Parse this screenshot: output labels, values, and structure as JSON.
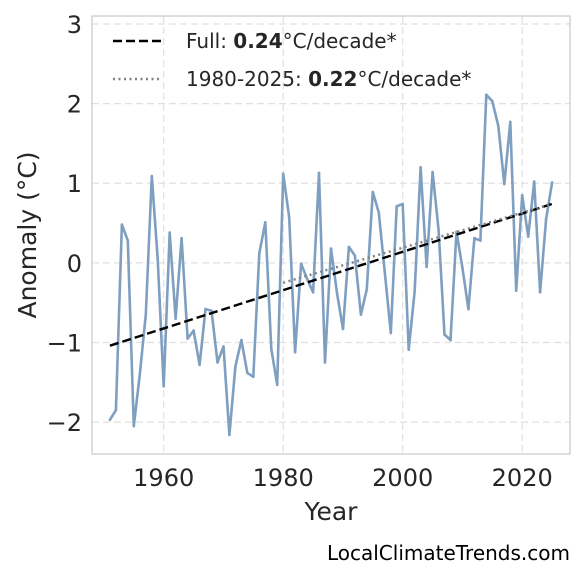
{
  "chart_data": {
    "type": "line",
    "xlabel": "Year",
    "ylabel": "Anomaly (°C)",
    "xlim": [
      1948,
      2028
    ],
    "ylim": [
      -2.4,
      3.1
    ],
    "x_ticks": [
      1960,
      1980,
      2000,
      2020
    ],
    "y_ticks": [
      -2,
      -1,
      0,
      1,
      2,
      3
    ],
    "y_tick_labels": [
      "−2",
      "−1",
      "0",
      "1",
      "2",
      "3"
    ],
    "grid": true,
    "legend_position": "top-left",
    "colors": {
      "series": "#7f9fc1",
      "full_trend": "#000000",
      "recent_trend": "#808080"
    },
    "series": [
      {
        "x": [
          1951,
          1952,
          1953,
          1954,
          1955,
          1956,
          1957,
          1958,
          1959,
          1960,
          1961,
          1962,
          1963,
          1964,
          1965,
          1966,
          1967,
          1968,
          1969,
          1970,
          1971,
          1972,
          1973,
          1974,
          1975,
          1976,
          1977,
          1978,
          1979,
          1980,
          1981,
          1982,
          1983,
          1984,
          1985,
          1986,
          1987,
          1988,
          1989,
          1990,
          1991,
          1992,
          1993,
          1994,
          1995,
          1996,
          1997,
          1998,
          1999,
          2000,
          2001,
          2002,
          2003,
          2004,
          2005,
          2006,
          2007,
          2008,
          2009,
          2010,
          2011,
          2012,
          2013,
          2014,
          2015,
          2016,
          2017,
          2018,
          2019,
          2020,
          2021,
          2022,
          2023,
          2024,
          2025
        ],
        "y": [
          -1.97,
          -1.85,
          0.48,
          0.28,
          -2.05,
          -1.4,
          -0.65,
          1.09,
          0.05,
          -1.55,
          0.38,
          -0.7,
          0.31,
          -0.95,
          -0.85,
          -1.28,
          -0.58,
          -0.6,
          -1.25,
          -1.05,
          -2.16,
          -1.3,
          -0.97,
          -1.38,
          -1.43,
          0.12,
          0.51,
          -1.08,
          -1.53,
          1.12,
          0.57,
          -1.12,
          -0.01,
          -0.2,
          -0.37,
          1.13,
          -1.25,
          0.18,
          -0.38,
          -0.83,
          0.2,
          0.09,
          -0.65,
          -0.33,
          0.89,
          0.63,
          -0.12,
          -0.88,
          0.71,
          0.74,
          -1.09,
          -0.35,
          1.2,
          -0.05,
          1.14,
          0.41,
          -0.9,
          -0.97,
          0.39,
          -0.06,
          -0.58,
          0.31,
          0.28,
          2.11,
          2.03,
          1.72,
          0.99,
          1.77,
          -0.35,
          0.85,
          0.33,
          1.02,
          -0.37,
          0.55,
          1.01
        ]
      }
    ],
    "trends": [
      {
        "style": "dashed",
        "label_prefix": "Full: ",
        "rate": "0.24",
        "label_suffix": "°C/decade*",
        "x": [
          1951,
          2025
        ],
        "y": [
          -1.04,
          0.74
        ]
      },
      {
        "style": "dotted",
        "label_prefix": "1980-2025: ",
        "rate": "0.22",
        "label_suffix": "°C/decade*",
        "x": [
          1980,
          2025
        ],
        "y": [
          -0.25,
          0.74
        ]
      }
    ]
  },
  "watermark": "LocalClimateTrends.com"
}
